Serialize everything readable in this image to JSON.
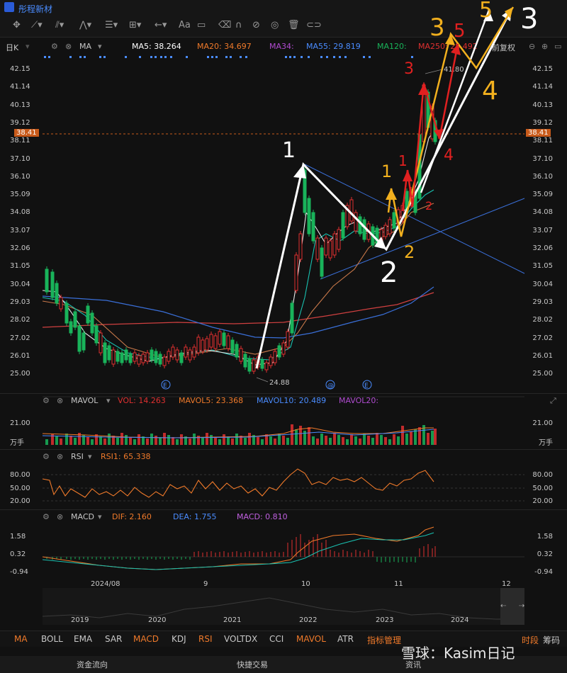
{
  "app": {
    "title": "彤程新材"
  },
  "ma_legend": {
    "period": "日K",
    "indicator": "MA",
    "ma5": "MA5: 38.264",
    "ma20": "MA20: 34.697",
    "ma34": "MA34:",
    "ma55": "MA55: 29.819",
    "ma120": "MA120:",
    "ma250": "MA250: 28.492",
    "adjust": "前复权"
  },
  "price_axis": [
    "42.15",
    "41.14",
    "40.13",
    "39.12",
    "38.11",
    "37.10",
    "36.10",
    "35.09",
    "34.08",
    "33.07",
    "32.06",
    "31.05",
    "30.04",
    "29.03",
    "28.02",
    "27.02",
    "26.01",
    "25.00"
  ],
  "current_price": "38.41",
  "price_labels": {
    "high": "41.80",
    "low": "24.88"
  },
  "event_markers": [
    "E",
    "@",
    "E"
  ],
  "mavol": {
    "name": "MAVOL",
    "vol": "VOL: 14.263",
    "mavol5": "MAVOL5: 23.368",
    "mavol10": "MAVOL10: 20.489",
    "mavol20": "MAVOL20:",
    "axis": [
      "21.00",
      "万手"
    ]
  },
  "rsi": {
    "name": "RSI",
    "rsi1": "RSI1: 65.338",
    "axis": [
      "80.00",
      "50.00",
      "20.00"
    ]
  },
  "macd": {
    "name": "MACD",
    "dif": "DIF: 2.160",
    "dea": "DEA: 1.755",
    "macd": "MACD: 0.810",
    "axis": [
      "1.58",
      "0.32",
      "-0.94"
    ]
  },
  "date_axis": [
    "2024/08",
    "9",
    "10",
    "11",
    "12"
  ],
  "timeline_years": [
    "2019",
    "2020",
    "2021",
    "2022",
    "2023",
    "2024"
  ],
  "indicator_tabs": [
    "MA",
    "BOLL",
    "EMA",
    "SAR",
    "MACD",
    "KDJ",
    "RSI",
    "VOLTDX",
    "CCI",
    "MAVOL",
    "ATR",
    "指标管理"
  ],
  "right_tabs": [
    "时段",
    "筹码"
  ],
  "footer": {
    "left": "资金流向",
    "mid": "快捷交易",
    "right": "资讯",
    "watermark": "雪球：Kasim日记"
  },
  "annotations": [
    "1",
    "2",
    "1",
    "2",
    "1",
    "2",
    "3",
    "4",
    "3",
    "4",
    "5",
    "3",
    "5",
    "4"
  ],
  "colors": {
    "up": "#e03030",
    "down": "#19b35a",
    "accent": "#f07a2a",
    "blue": "#4a8cff"
  }
}
